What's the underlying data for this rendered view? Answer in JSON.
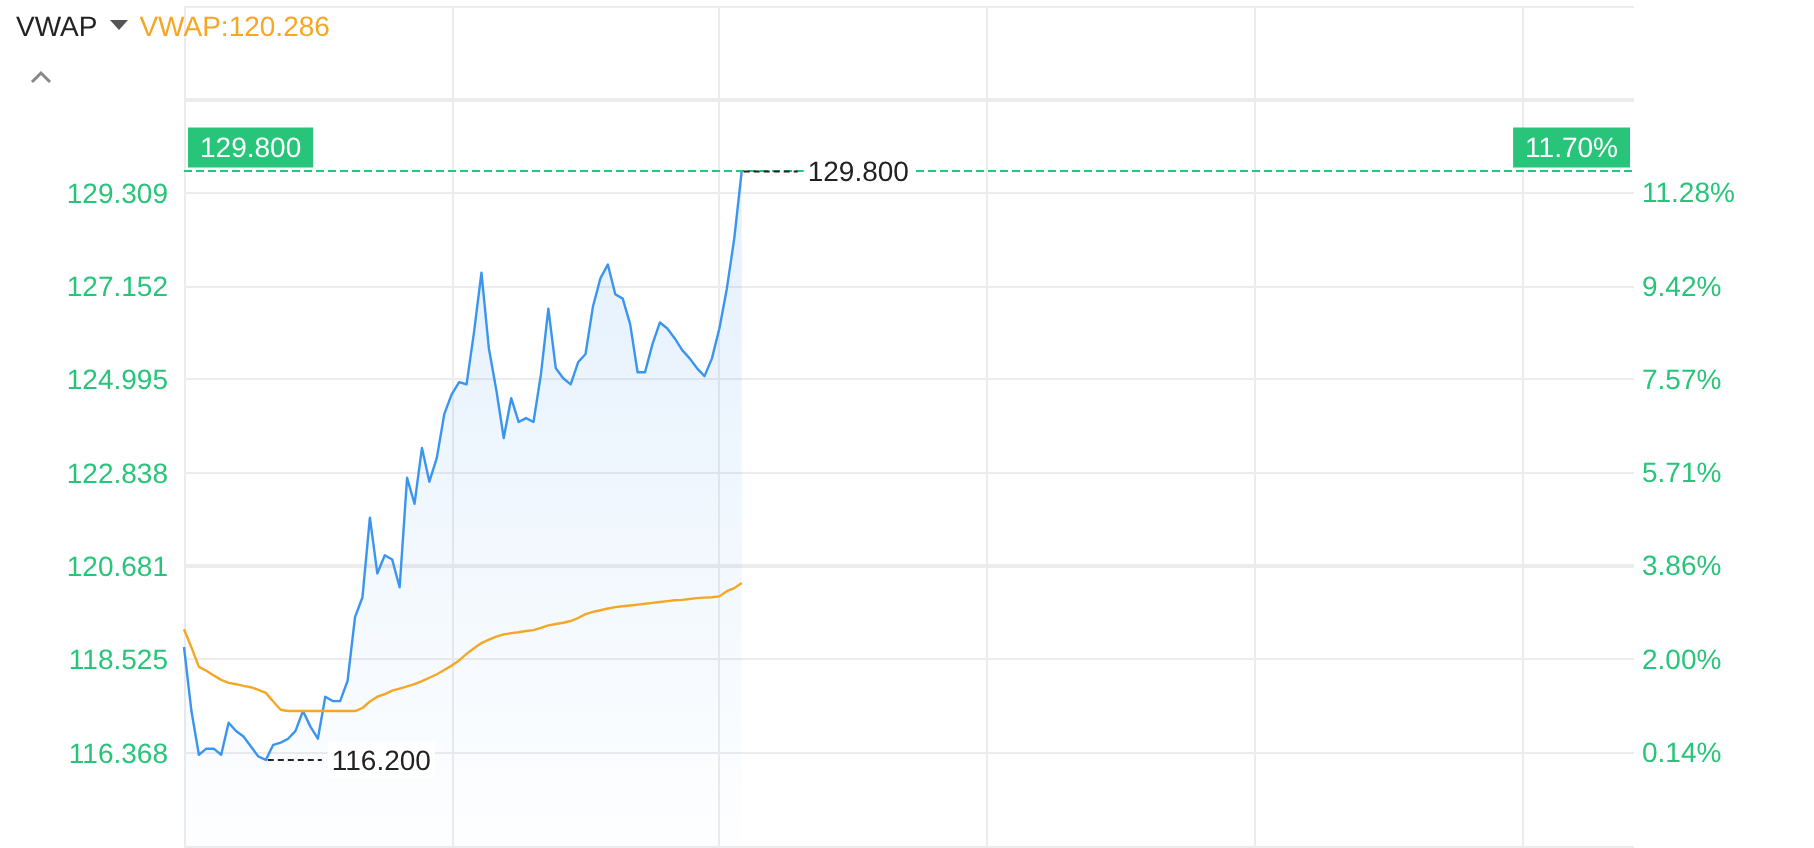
{
  "chart_data": {
    "type": "line",
    "title": "VWAP",
    "annotations": [
      "VWAP:120.286",
      {
        "text": "11.70%",
        "y": 129.8
      }
    ],
    "categories": [
      null,
      null,
      null,
      null,
      null,
      null,
      null,
      null,
      null,
      null,
      null,
      null,
      null,
      null,
      null,
      null,
      null,
      null,
      null,
      null,
      null,
      null,
      null,
      null,
      null,
      null,
      null,
      null,
      null,
      null,
      null,
      null,
      null,
      null,
      null,
      null,
      null,
      null,
      null,
      null,
      null,
      null,
      null,
      null,
      null,
      null,
      null,
      null,
      null,
      null,
      null,
      null,
      null,
      null,
      null,
      null,
      null,
      null,
      null,
      null,
      null,
      null,
      null,
      null,
      null,
      null,
      null,
      null,
      null,
      null,
      null,
      null,
      null,
      null,
      null,
      null,
      null,
      null,
      null,
      null,
      null,
      null,
      null,
      null,
      null,
      null,
      null,
      null,
      null,
      null,
      null,
      null,
      null,
      null,
      null,
      null,
      null,
      null,
      null,
      null,
      null,
      null,
      null,
      null,
      null,
      null,
      null,
      null,
      null,
      null,
      null,
      null,
      null,
      null,
      null,
      null,
      null,
      null,
      null,
      null,
      null,
      null,
      null,
      null,
      null,
      null,
      null,
      null,
      null,
      null,
      null,
      null,
      null,
      null,
      null,
      null,
      null,
      null,
      null,
      null,
      null,
      null,
      null,
      null,
      null,
      null,
      null,
      null,
      null,
      null,
      null,
      null,
      null,
      null,
      null,
      null,
      null,
      null,
      null,
      null,
      null,
      null,
      null,
      null,
      null,
      null,
      null,
      null,
      null,
      null,
      null,
      null,
      null,
      null,
      null,
      null,
      null,
      null,
      null,
      null,
      null,
      null,
      null,
      null,
      null,
      null,
      null,
      null,
      null,
      null,
      null,
      null,
      null,
      null,
      null,
      null
    ],
    "series": [
      {
        "type": "area",
        "color": "#3a95f0",
        "values": [
          118.81,
          117.33,
          116.32,
          116.46,
          116.46,
          116.32,
          117.06,
          116.87,
          116.74,
          116.51,
          116.28,
          116.2,
          116.55,
          116.6,
          116.69,
          116.87,
          117.33,
          116.97,
          116.69,
          117.66,
          117.56,
          117.56,
          118.03,
          119.5,
          119.96,
          121.8,
          120.51,
          120.93,
          120.83,
          120.19,
          122.72,
          122.12,
          123.41,
          122.63,
          123.18,
          124.19,
          124.65,
          124.93,
          124.88,
          126.08,
          127.46,
          125.71,
          124.75,
          123.64,
          124.56,
          124.01,
          124.1,
          124.01,
          125.11,
          126.63,
          125.25,
          125.02,
          124.88,
          125.39,
          125.58,
          126.68,
          127.33,
          127.65,
          126.96,
          126.86,
          126.27,
          125.16,
          125.16,
          125.81,
          126.31,
          126.17,
          125.94,
          125.67,
          125.48,
          125.25,
          125.07,
          125.48,
          126.17,
          127.09,
          128.25,
          129.8,
          null,
          null,
          null,
          null,
          null,
          null,
          null,
          null,
          null,
          null,
          null,
          null,
          null,
          null,
          null,
          null,
          null,
          null,
          null,
          null,
          null,
          null,
          null,
          null,
          null,
          null,
          null,
          null,
          null,
          null,
          null,
          null,
          null,
          null,
          null,
          null,
          null,
          null,
          null,
          null,
          null,
          null,
          null,
          null,
          null,
          null,
          null,
          null,
          null,
          null,
          null,
          null,
          null,
          null,
          null,
          null,
          null,
          null,
          null,
          null,
          null,
          null,
          null,
          null,
          null,
          null,
          null,
          null,
          null,
          null,
          null,
          null,
          null,
          null,
          null,
          null,
          null,
          null,
          null,
          null,
          null,
          null,
          null,
          null,
          null,
          null,
          null,
          null,
          null,
          null,
          null,
          null,
          null,
          null,
          null,
          null,
          null,
          null,
          null,
          null,
          null,
          null,
          null,
          null,
          null,
          null,
          null,
          null,
          null,
          null,
          null,
          null,
          null,
          null,
          null,
          null,
          null,
          null,
          null,
          null
        ],
        "value_labels": [
          null,
          null,
          null,
          null,
          null,
          null,
          null,
          null,
          null,
          null,
          null,
          "116.200",
          null,
          null,
          null,
          null,
          null,
          null,
          null,
          null,
          null,
          null,
          null,
          null,
          null,
          null,
          null,
          null,
          null,
          null,
          null,
          null,
          null,
          null,
          null,
          null,
          null,
          null,
          null,
          null,
          null,
          null,
          null,
          null,
          null,
          null,
          null,
          null,
          null,
          null,
          null,
          null,
          null,
          null,
          null,
          null,
          null,
          null,
          null,
          null,
          null,
          null,
          null,
          null,
          null,
          null,
          null,
          null,
          null,
          null,
          null,
          null,
          null,
          null,
          null,
          "129.800",
          null,
          null,
          null,
          null,
          null,
          null,
          null,
          null,
          null,
          null,
          null,
          null,
          null,
          null,
          null,
          null,
          null,
          null,
          null,
          null,
          null,
          null,
          null,
          null,
          null,
          null,
          null,
          null,
          null,
          null,
          null,
          null,
          null,
          null,
          null,
          null,
          null,
          null,
          null,
          null,
          null,
          null,
          null,
          null,
          null,
          null,
          null,
          null,
          null,
          null,
          null,
          null,
          null,
          null,
          null,
          null,
          null,
          null,
          null,
          null,
          null,
          null,
          null,
          null,
          null,
          null,
          null,
          null,
          null,
          null,
          null,
          null,
          null,
          null,
          null,
          null,
          null,
          null,
          null,
          null,
          null,
          null,
          null,
          null,
          null,
          null,
          null,
          null,
          null,
          null,
          null,
          null,
          null,
          null,
          null,
          null,
          null,
          null,
          null,
          null,
          null,
          null,
          null,
          null,
          null,
          null,
          null,
          null,
          null,
          null,
          null,
          null,
          null,
          null,
          null,
          null,
          null,
          null,
          null,
          null
        ]
      },
      {
        "color": "#f5a623",
        "values": [
          119.22,
          118.8,
          118.35,
          118.26,
          118.15,
          118.05,
          117.98,
          117.95,
          117.91,
          117.88,
          117.82,
          117.75,
          117.55,
          117.36,
          117.33,
          117.33,
          117.33,
          117.33,
          117.33,
          117.33,
          117.33,
          117.33,
          117.33,
          117.33,
          117.4,
          117.55,
          117.66,
          117.72,
          117.8,
          117.85,
          117.9,
          117.95,
          118.02,
          118.1,
          118.18,
          118.28,
          118.38,
          118.5,
          118.65,
          118.78,
          118.9,
          118.98,
          119.05,
          119.1,
          119.13,
          119.15,
          119.18,
          119.2,
          119.25,
          119.31,
          119.34,
          119.37,
          119.41,
          119.48,
          119.57,
          119.62,
          119.66,
          119.7,
          119.73,
          119.75,
          119.77,
          119.79,
          119.81,
          119.83,
          119.85,
          119.87,
          119.89,
          119.9,
          119.92,
          119.94,
          119.95,
          119.96,
          119.98,
          120.1,
          120.17,
          120.29,
          null,
          null,
          null,
          null,
          null,
          null,
          null,
          null,
          null,
          null,
          null,
          null,
          null,
          null,
          null,
          null,
          null,
          null,
          null,
          null,
          null,
          null,
          null,
          null,
          null,
          null,
          null,
          null,
          null,
          null,
          null,
          null,
          null,
          null,
          null,
          null,
          null,
          null,
          null,
          null,
          null,
          null,
          null,
          null,
          null,
          null,
          null,
          null,
          null,
          null,
          null,
          null,
          null,
          null,
          null,
          null,
          null,
          null,
          null,
          null,
          null,
          null,
          null,
          null,
          null,
          null,
          null,
          null,
          null,
          null,
          null,
          null,
          null,
          null,
          null,
          null,
          null,
          null,
          null,
          null,
          null,
          null,
          null,
          null,
          null,
          null,
          null,
          null,
          null,
          null,
          null,
          null,
          null,
          null,
          null,
          null,
          null,
          null,
          null,
          null,
          null,
          null,
          null,
          null,
          null,
          null,
          null,
          null,
          null,
          null,
          null,
          null,
          null,
          null,
          null,
          null,
          null,
          null,
          null,
          null
        ]
      }
    ],
    "ylim": [
      114.211,
      133.623
    ],
    "yticks": [
      {
        "value": 114.211,
        "label": null
      },
      {
        "value": 116.368,
        "label": "116.368"
      },
      {
        "value": 118.525,
        "label": "118.525"
      },
      {
        "value": 120.681,
        "label": "120.681"
      },
      {
        "value": 122.838,
        "label": "122.838"
      },
      {
        "value": 124.995,
        "label": "124.995"
      },
      {
        "value": 127.152,
        "label": "127.152"
      },
      {
        "value": 129.309,
        "label": "129.309"
      },
      {
        "value": 131.466,
        "label": null
      },
      {
        "value": 133.623,
        "label": null
      }
    ],
    "y2lim": [
      -1.72,
      14.99
    ],
    "y2ticks": [
      {
        "value": -1.72,
        "label": null
      },
      {
        "value": 0.14,
        "label": "0.14%"
      },
      {
        "value": 2.0,
        "label": "2.00%"
      },
      {
        "value": 3.86,
        "label": "3.86%"
      },
      {
        "value": 5.71,
        "label": "5.71%"
      },
      {
        "value": 7.57,
        "label": "7.57%"
      },
      {
        "value": 9.42,
        "label": "9.42%"
      },
      {
        "value": 11.28,
        "label": "11.28%"
      },
      {
        "value": 13.13,
        "label": null
      },
      {
        "value": 14.99,
        "label": null
      }
    ],
    "ref_lines": [
      {
        "axis": "y",
        "value": 129.8,
        "label": "129.800",
        "color": "#27c47a",
        "line_style": "dashed"
      }
    ],
    "grid": true,
    "tick_labels": "y",
    "marker": "none",
    "line_style": "solid"
  }
}
